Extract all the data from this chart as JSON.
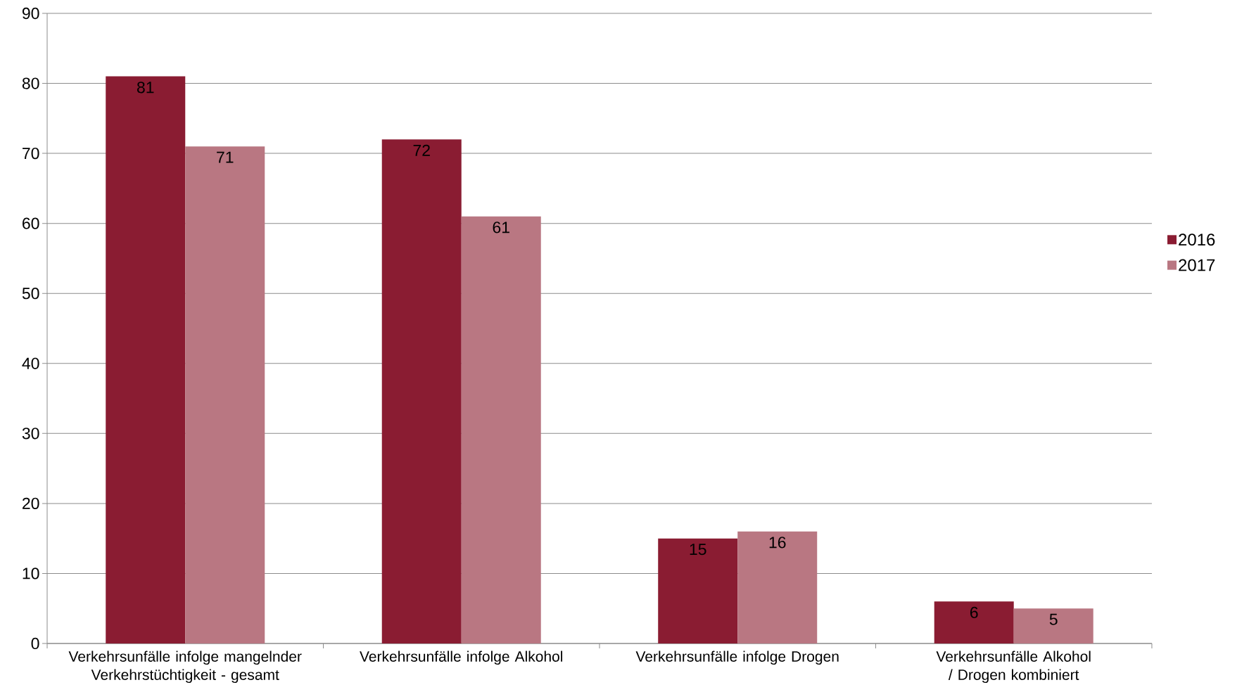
{
  "chart_data": {
    "type": "bar",
    "categories": [
      "Verkehrsunfälle infolge mangelnder Verkehrstüchtigkeit - gesamt",
      "Verkehrsunfälle infolge Alkohol",
      "Verkehrsunfälle infolge Drogen",
      "Verkehrsunfälle Alkohol / Drogen kombiniert"
    ],
    "series": [
      {
        "name": "2016",
        "color": "#8a1c32",
        "values": [
          81,
          72,
          15,
          6
        ]
      },
      {
        "name": "2017",
        "color": "#b97782",
        "values": [
          71,
          61,
          16,
          5
        ]
      }
    ],
    "ylim": [
      0,
      90
    ],
    "yticks": [
      0,
      10,
      20,
      30,
      40,
      50,
      60,
      70,
      80,
      90
    ],
    "grid": "y",
    "legend": "right",
    "data_labels": true
  }
}
